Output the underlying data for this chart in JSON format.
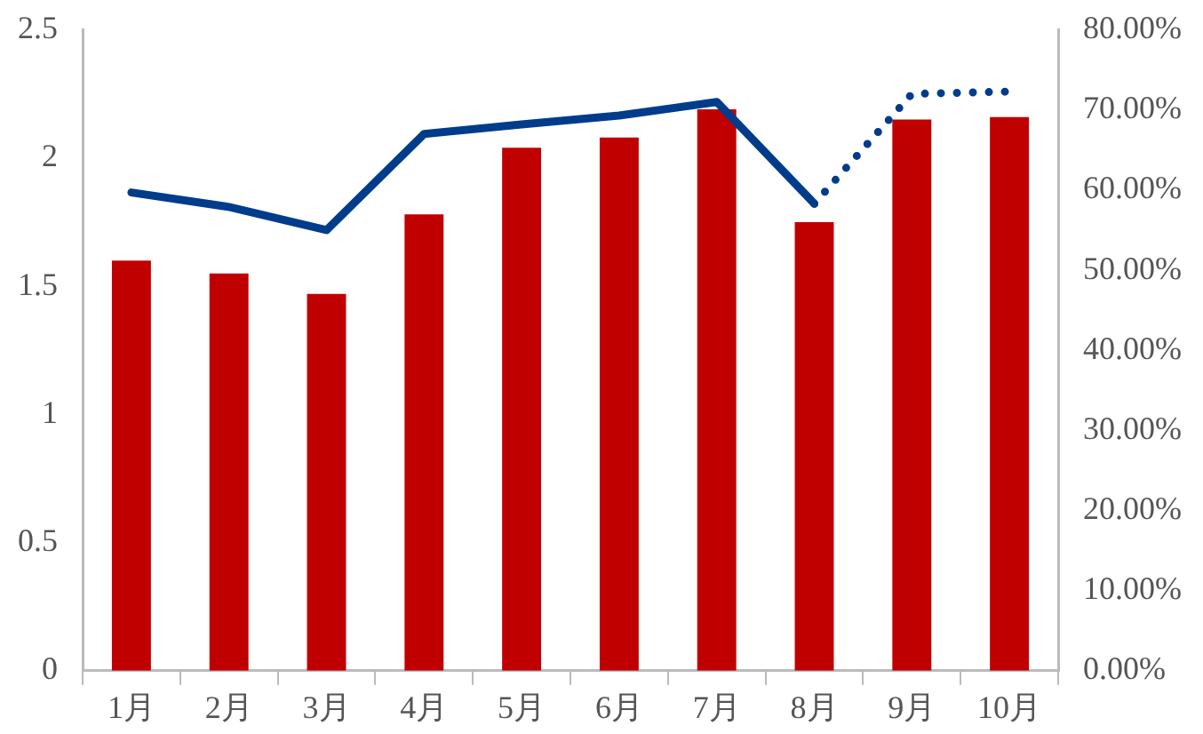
{
  "chart_data": {
    "type": "bar",
    "categories": [
      "1月",
      "2月",
      "3月",
      "4月",
      "5月",
      "6月",
      "7月",
      "8月",
      "9月",
      "10月"
    ],
    "series": [
      {
        "color": "#c00000",
        "values": [
          1.6,
          1.55,
          1.47,
          1.78,
          2.04,
          2.08,
          2.19,
          1.75,
          2.15,
          2.16
        ]
      },
      {
        "type": "line",
        "axis": "y2",
        "color": "#003c8c",
        "line_style": "solid",
        "values": [
          59.7,
          57.9,
          55.0,
          67.0,
          68.2,
          69.3,
          71.0,
          58.3,
          null,
          null
        ]
      },
      {
        "type": "line",
        "axis": "y2",
        "color": "#003c8c",
        "line_style": "dotted",
        "values": [
          null,
          null,
          null,
          null,
          null,
          null,
          null,
          58.3,
          72.0,
          72.3
        ]
      }
    ],
    "ylim": [
      0,
      2.5
    ],
    "yticks": [
      0,
      0.5,
      1,
      1.5,
      2,
      2.5
    ],
    "y2lim": [
      0,
      80
    ],
    "y2ticks": [
      {
        "value": 0,
        "label": "0.00%"
      },
      {
        "value": 10,
        "label": "10.00%"
      },
      {
        "value": 20,
        "label": "20.00%"
      },
      {
        "value": 30,
        "label": "30.00%"
      },
      {
        "value": 40,
        "label": "40.00%"
      },
      {
        "value": 50,
        "label": "50.00%"
      },
      {
        "value": 60,
        "label": "60.00%"
      },
      {
        "value": 70,
        "label": "70.00%"
      },
      {
        "value": 80,
        "label": "80.00%"
      }
    ],
    "grid": false,
    "legend": false,
    "marker": "none"
  }
}
